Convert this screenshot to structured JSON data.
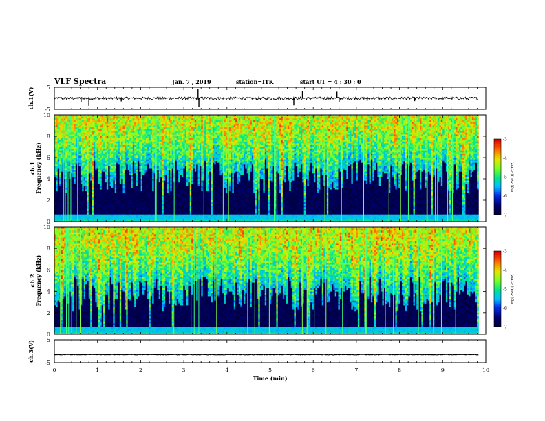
{
  "header": {
    "title": "VLF Spectra",
    "date": "Jan. 7 , 2019",
    "station": "station=ITK",
    "start_ut": "start UT = 4 : 30 : 0"
  },
  "colors": {
    "spectrum_low": "#000040",
    "spectrum_mid": "#00ff80",
    "spectrum_high": "#ff0000",
    "baseline_band": "#00c8ff"
  },
  "chart_data": [
    {
      "type": "line",
      "name": "ch1-waveform",
      "ylabel": "ch.1(V)",
      "ylim": [
        -5,
        5
      ],
      "yticks": [
        "5",
        "-5"
      ],
      "xlim": [
        0,
        10
      ],
      "baseline": 0,
      "spikes": [
        {
          "x": 0.62,
          "y": -1.9
        },
        {
          "x": 0.8,
          "y": -3.4
        },
        {
          "x": 1.55,
          "y": -1.4
        },
        {
          "x": 3.33,
          "y": 4.2
        },
        {
          "x": 3.35,
          "y": -3.9
        },
        {
          "x": 5.55,
          "y": -3.2
        },
        {
          "x": 5.75,
          "y": 3.3
        },
        {
          "x": 6.55,
          "y": 3.0
        },
        {
          "x": 6.6,
          "y": -1.6
        },
        {
          "x": 7.25,
          "y": -1.2
        },
        {
          "x": 8.35,
          "y": -1.3
        }
      ]
    },
    {
      "type": "heatmap",
      "name": "ch1-spectrogram",
      "xlabel": "",
      "ylabel": "ch.1\nFrequency (kHz)",
      "xlim": [
        0,
        9.83
      ],
      "ylim": [
        0,
        10
      ],
      "yticks": [
        "0",
        "2",
        "4",
        "6",
        "8",
        "10"
      ],
      "noise_floor_khz": [
        0.2,
        0.6
      ],
      "mean_cutoff_khz": 5.0,
      "colorbar": {
        "label": "log(PSD)(V²/Hz)",
        "range": [
          -7,
          -3
        ],
        "ticks": [
          "-3",
          "-4",
          "-5",
          "-6",
          "-7"
        ]
      }
    },
    {
      "type": "heatmap",
      "name": "ch2-spectrogram",
      "xlabel": "",
      "ylabel": "ch.2\nFrequency (kHz)",
      "xlim": [
        0,
        9.83
      ],
      "ylim": [
        0,
        10
      ],
      "yticks": [
        "0",
        "2",
        "4",
        "6",
        "8",
        "10"
      ],
      "noise_floor_khz": [
        0.2,
        0.6
      ],
      "mean_cutoff_khz": 4.6,
      "colorbar": {
        "label": "log(PSD)(V²/Hz)",
        "range": [
          -7,
          -3
        ],
        "ticks": [
          "-3",
          "-4",
          "-5",
          "-6",
          "-7"
        ]
      }
    },
    {
      "type": "line",
      "name": "ch3-waveform",
      "ylabel": "ch.3(V)",
      "ylim": [
        -5,
        5
      ],
      "yticks": [
        "5",
        "-5"
      ],
      "xlim": [
        0,
        10
      ],
      "baseline": -1.5,
      "xlabel": "Time (min)",
      "xticks": [
        "0",
        "1",
        "2",
        "3",
        "4",
        "5",
        "6",
        "7",
        "8",
        "9",
        "10"
      ]
    }
  ]
}
